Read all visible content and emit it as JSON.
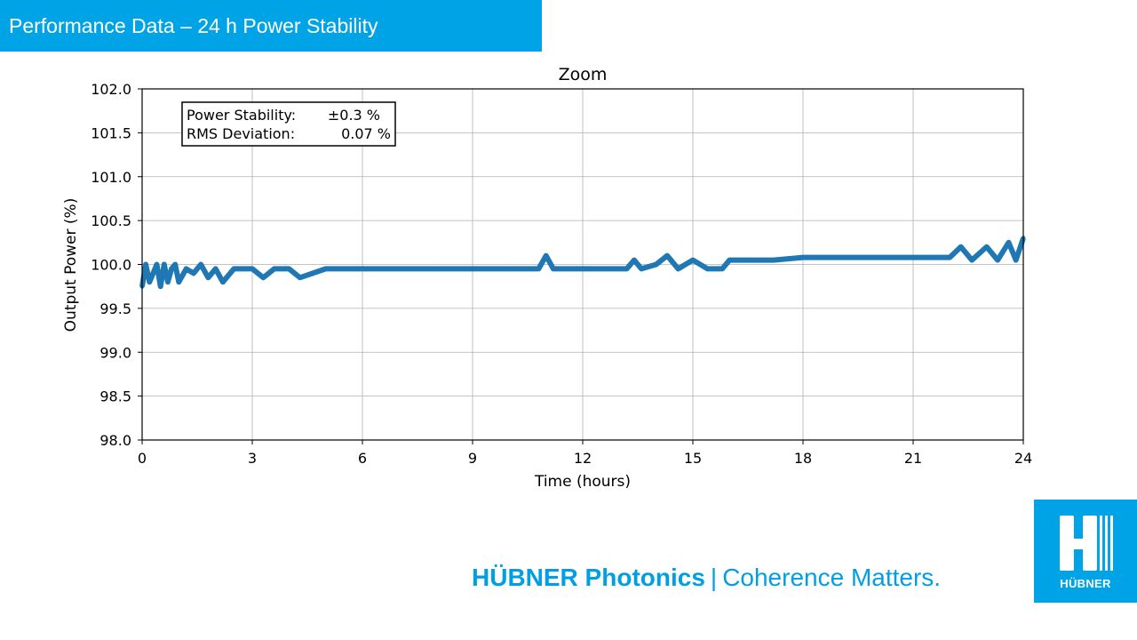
{
  "header": {
    "title": "Performance Data – 24 h Power Stability"
  },
  "footer": {
    "brand": "HÜBNER Photonics",
    "separator": "|",
    "slogan": "Coherence Matters.",
    "logo_text": "HÜBNER"
  },
  "colors": {
    "banner": "#00a3e6",
    "series": "#1f77b4",
    "brand_text": "#009fe3"
  },
  "chart_data": {
    "type": "line",
    "title": "Zoom",
    "xlabel": "Time (hours)",
    "ylabel": "Output Power (%)",
    "xlim": [
      0,
      24
    ],
    "ylim": [
      98.0,
      102.0
    ],
    "xticks": [
      0,
      3,
      6,
      9,
      12,
      15,
      18,
      21,
      24
    ],
    "yticks": [
      98.0,
      98.5,
      99.0,
      99.5,
      100.0,
      100.5,
      101.0,
      101.5,
      102.0
    ],
    "xtick_labels": [
      "0",
      "3",
      "6",
      "9",
      "12",
      "15",
      "18",
      "21",
      "24"
    ],
    "ytick_labels": [
      "98.0",
      "98.5",
      "99.0",
      "99.5",
      "100.0",
      "100.5",
      "101.0",
      "101.5",
      "102.0"
    ],
    "grid": true,
    "annotation": {
      "rows": [
        {
          "label": "Power Stability:",
          "value": "±0.3 %"
        },
        {
          "label": "RMS Deviation:",
          "value": "0.07 %"
        }
      ],
      "placement": "top-left"
    },
    "series": [
      {
        "x": [
          0,
          0.1,
          0.2,
          0.3,
          0.4,
          0.5,
          0.6,
          0.7,
          0.8,
          0.9,
          1.0,
          1.2,
          1.4,
          1.6,
          1.8,
          2.0,
          2.2,
          2.5,
          2.8,
          3.0,
          3.3,
          3.6,
          4.0,
          4.3,
          5,
          6,
          7,
          8,
          9,
          10,
          10.8,
          11.0,
          11.2,
          12,
          12.5,
          13.0,
          13.2,
          13.4,
          13.6,
          14.0,
          14.3,
          14.6,
          15.0,
          15.4,
          15.8,
          16.0,
          16.4,
          16.8,
          17.2,
          18,
          19,
          20,
          21,
          22,
          22.3,
          22.6,
          23.0,
          23.3,
          23.6,
          23.8,
          24.0
        ],
        "y": [
          99.75,
          100.0,
          99.8,
          99.9,
          100.0,
          99.75,
          100.0,
          99.8,
          99.95,
          100.0,
          99.8,
          99.95,
          99.9,
          100.0,
          99.85,
          99.95,
          99.8,
          99.95,
          99.95,
          99.95,
          99.85,
          99.95,
          99.95,
          99.85,
          99.95,
          99.95,
          99.95,
          99.95,
          99.95,
          99.95,
          99.95,
          100.1,
          99.95,
          99.95,
          99.95,
          99.95,
          99.95,
          100.05,
          99.95,
          100.0,
          100.1,
          99.95,
          100.05,
          99.95,
          99.95,
          100.05,
          100.05,
          100.05,
          100.05,
          100.08,
          100.08,
          100.08,
          100.08,
          100.08,
          100.2,
          100.05,
          100.2,
          100.05,
          100.25,
          100.05,
          100.3
        ]
      }
    ]
  }
}
